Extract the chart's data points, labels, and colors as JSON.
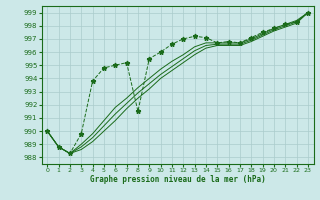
{
  "title": "Graphe pression niveau de la mer (hPa)",
  "background_color": "#cce8e8",
  "grid_color": "#aacccc",
  "line_color": "#1a6b1a",
  "xlim": [
    -0.5,
    23.5
  ],
  "ylim": [
    987.5,
    999.5
  ],
  "yticks": [
    988,
    989,
    990,
    991,
    992,
    993,
    994,
    995,
    996,
    997,
    998,
    999
  ],
  "xticks": [
    0,
    1,
    2,
    3,
    4,
    5,
    6,
    7,
    8,
    9,
    10,
    11,
    12,
    13,
    14,
    15,
    16,
    17,
    18,
    19,
    20,
    21,
    22,
    23
  ],
  "series": [
    {
      "x": [
        0,
        1,
        2,
        3,
        4,
        5,
        6,
        7,
        8,
        9,
        10,
        11,
        12,
        13,
        14,
        15,
        16,
        17,
        18,
        19,
        20,
        21,
        22,
        23
      ],
      "y": [
        990.0,
        988.8,
        988.3,
        989.8,
        993.8,
        994.8,
        995.0,
        995.2,
        991.5,
        995.5,
        996.0,
        996.6,
        997.0,
        997.2,
        997.1,
        996.7,
        996.8,
        996.7,
        997.1,
        997.5,
        997.8,
        998.1,
        998.3,
        999.0
      ],
      "style": "dotted_marker"
    },
    {
      "x": [
        0,
        1,
        2,
        3,
        4,
        5,
        6,
        7,
        8,
        9,
        10,
        11,
        12,
        13,
        14,
        15,
        16,
        17,
        18,
        19,
        20,
        21,
        22,
        23
      ],
      "y": [
        990.0,
        988.8,
        988.3,
        989.0,
        989.8,
        990.8,
        991.8,
        992.5,
        993.3,
        994.0,
        994.7,
        995.3,
        995.8,
        996.4,
        996.7,
        996.7,
        996.7,
        996.7,
        997.0,
        997.4,
        997.8,
        998.1,
        998.4,
        999.0
      ],
      "style": "solid"
    },
    {
      "x": [
        0,
        1,
        2,
        3,
        4,
        5,
        6,
        7,
        8,
        9,
        10,
        11,
        12,
        13,
        14,
        15,
        16,
        17,
        18,
        19,
        20,
        21,
        22,
        23
      ],
      "y": [
        990.0,
        988.8,
        988.3,
        988.8,
        989.5,
        990.4,
        991.3,
        992.1,
        992.9,
        993.6,
        994.3,
        994.9,
        995.5,
        996.1,
        996.5,
        996.6,
        996.6,
        996.6,
        996.9,
        997.3,
        997.7,
        998.0,
        998.3,
        999.0
      ],
      "style": "solid"
    },
    {
      "x": [
        0,
        1,
        2,
        3,
        4,
        5,
        6,
        7,
        8,
        9,
        10,
        11,
        12,
        13,
        14,
        15,
        16,
        17,
        18,
        19,
        20,
        21,
        22,
        23
      ],
      "y": [
        990.0,
        988.8,
        988.3,
        988.6,
        989.2,
        990.0,
        990.8,
        991.7,
        992.5,
        993.2,
        994.0,
        994.6,
        995.2,
        995.8,
        996.3,
        996.5,
        996.5,
        996.5,
        996.8,
        997.2,
        997.6,
        997.9,
        998.2,
        999.0
      ],
      "style": "solid"
    }
  ]
}
